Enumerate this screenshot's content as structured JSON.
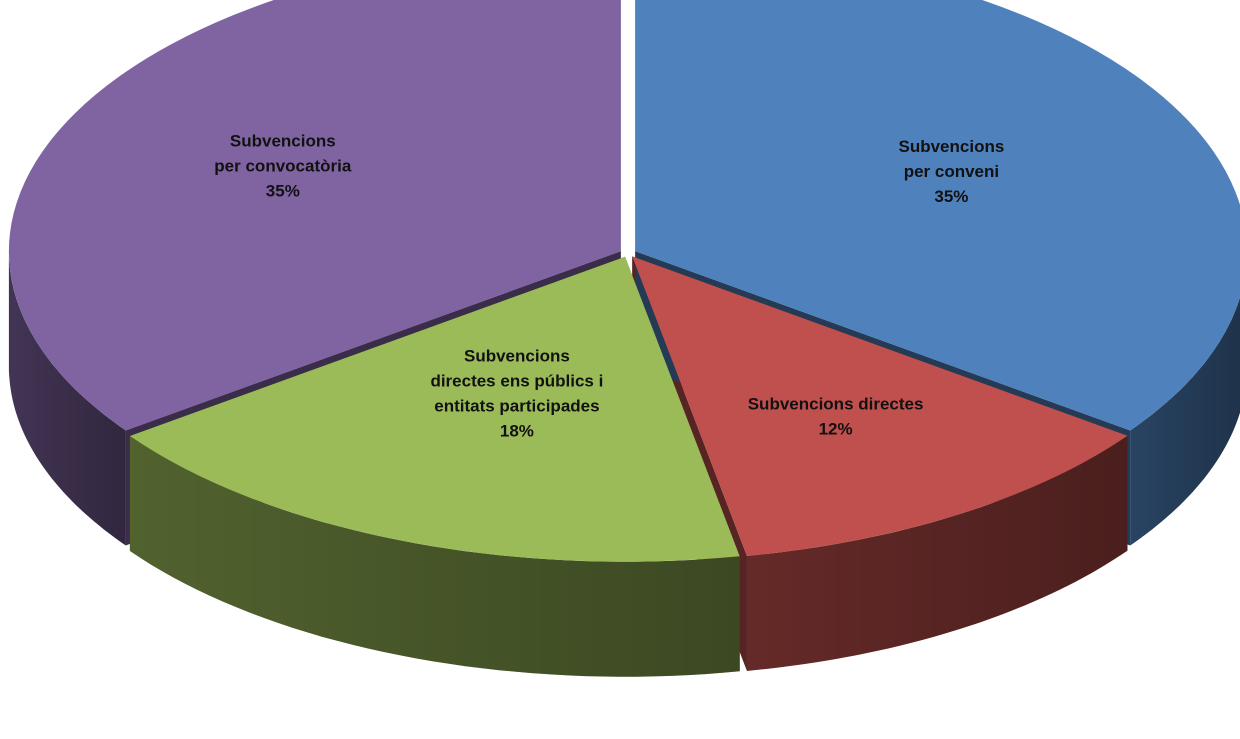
{
  "chart_data": {
    "type": "pie",
    "title": "",
    "style": "3d-exploded-perspective",
    "slices": [
      {
        "label": "Subvencions per conveni",
        "label_lines": [
          "Subvencions",
          "per conveni"
        ],
        "percent_text": "35%",
        "value": 35,
        "color": "#4f81bd"
      },
      {
        "label": "Subvencions directes",
        "label_lines": [
          "Subvencions directes"
        ],
        "percent_text": "12%",
        "value": 12,
        "color": "#c0504d"
      },
      {
        "label": "Subvencions directes ens públics i entitats participades",
        "label_lines": [
          "Subvencions",
          "directes ens públics i",
          "entitats participades"
        ],
        "percent_text": "18%",
        "value": 18,
        "color": "#9bbb59"
      },
      {
        "label": "Subvencions per convocatòria",
        "label_lines": [
          "Subvencions",
          "per convocatòria"
        ],
        "percent_text": "35%",
        "value": 35,
        "color": "#8064a2"
      }
    ]
  }
}
